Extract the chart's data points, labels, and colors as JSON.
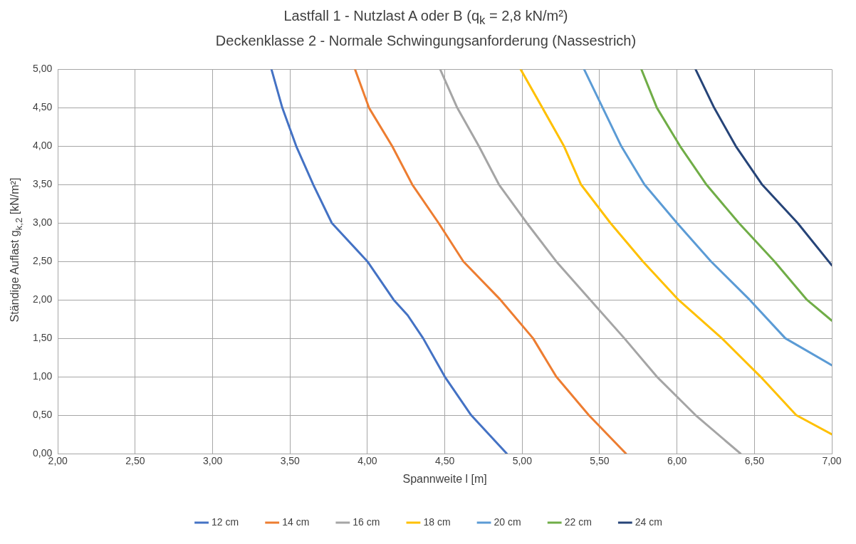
{
  "chart_data": {
    "type": "line",
    "title": "Lastfall 1 - Nutzlast A oder B (q$_{k}$ = 2,8 kN/m²)",
    "subtitle": "Deckenklasse 2 - Normale Schwingungsanforderung (Nassestrich)",
    "xlabel": "Spannweite l [m]",
    "ylabel": "Ständige Auflast g$_{k,2}$ [kN/m²]",
    "xlim": [
      2,
      7
    ],
    "ylim": [
      0,
      5
    ],
    "xticks": [
      {
        "value": 2,
        "label": "2,00"
      },
      {
        "value": 2.5,
        "label": "2,50"
      },
      {
        "value": 3,
        "label": "3,00"
      },
      {
        "value": 3.5,
        "label": "3,50"
      },
      {
        "value": 4,
        "label": "4,00"
      },
      {
        "value": 4.5,
        "label": "4,50"
      },
      {
        "value": 5,
        "label": "5,00"
      },
      {
        "value": 5.5,
        "label": "5,50"
      },
      {
        "value": 6,
        "label": "6,00"
      },
      {
        "value": 6.5,
        "label": "6,50"
      },
      {
        "value": 7,
        "label": "7,00"
      }
    ],
    "yticks": [
      {
        "value": 0,
        "label": "0,00"
      },
      {
        "value": 0.5,
        "label": "0,50"
      },
      {
        "value": 1,
        "label": "1,00"
      },
      {
        "value": 1.5,
        "label": "1,50"
      },
      {
        "value": 2,
        "label": "2,00"
      },
      {
        "value": 2.5,
        "label": "2,50"
      },
      {
        "value": 3,
        "label": "3,00"
      },
      {
        "value": 3.5,
        "label": "3,50"
      },
      {
        "value": 4,
        "label": "4,00"
      },
      {
        "value": 4.5,
        "label": "4,50"
      },
      {
        "value": 5,
        "label": "5,00"
      }
    ],
    "grid": true,
    "legend": "bottom",
    "marker": "none",
    "line_style": "solid",
    "series": [
      {
        "name": "12 cm",
        "color": "#4472c4",
        "x": [
          3.38,
          3.45,
          3.54,
          3.65,
          3.77,
          4.0,
          4.17,
          4.26,
          4.36,
          4.5,
          4.67,
          4.9
        ],
        "values": [
          5,
          4.5,
          4,
          3.5,
          3,
          2.5,
          2,
          1.8,
          1.5,
          1,
          0.5,
          0
        ]
      },
      {
        "name": "14 cm",
        "color": "#ed7d31",
        "x": [
          3.92,
          4.01,
          4.16,
          4.29,
          4.46,
          4.62,
          4.86,
          5.07,
          5.22,
          5.43,
          5.67
        ],
        "values": [
          5,
          4.5,
          4,
          3.5,
          3,
          2.5,
          2,
          1.5,
          1,
          0.5,
          0
        ]
      },
      {
        "name": "16 cm",
        "color": "#a5a5a5",
        "x": [
          4.47,
          4.58,
          4.72,
          4.85,
          5.03,
          5.22,
          5.44,
          5.66,
          5.87,
          6.12,
          6.41
        ],
        "values": [
          5,
          4.5,
          4,
          3.5,
          3,
          2.5,
          2,
          1.5,
          1,
          0.5,
          0
        ]
      },
      {
        "name": "18 cm",
        "color": "#ffc000",
        "x": [
          4.99,
          5.13,
          5.27,
          5.38,
          5.57,
          5.78,
          6.01,
          6.29,
          6.54,
          6.77,
          7.0
        ],
        "values": [
          5,
          4.5,
          4,
          3.5,
          3,
          2.5,
          2,
          1.5,
          1,
          0.5,
          0.25
        ]
      },
      {
        "name": "20 cm",
        "color": "#5b9bd5",
        "x": [
          5.4,
          5.52,
          5.64,
          5.79,
          6.0,
          6.22,
          6.47,
          6.7,
          7.0
        ],
        "values": [
          5,
          4.5,
          4,
          3.5,
          3,
          2.5,
          2,
          1.5,
          1.15
        ]
      },
      {
        "name": "22 cm",
        "color": "#70ad47",
        "x": [
          5.77,
          5.87,
          6.02,
          6.19,
          6.4,
          6.63,
          6.84,
          7.0
        ],
        "values": [
          5,
          4.5,
          4,
          3.5,
          3,
          2.5,
          2,
          1.73
        ]
      },
      {
        "name": "24 cm",
        "color": "#264478",
        "x": [
          6.12,
          6.24,
          6.38,
          6.55,
          6.78,
          7.0
        ],
        "values": [
          5,
          4.5,
          4,
          3.5,
          3,
          2.45
        ]
      }
    ]
  }
}
